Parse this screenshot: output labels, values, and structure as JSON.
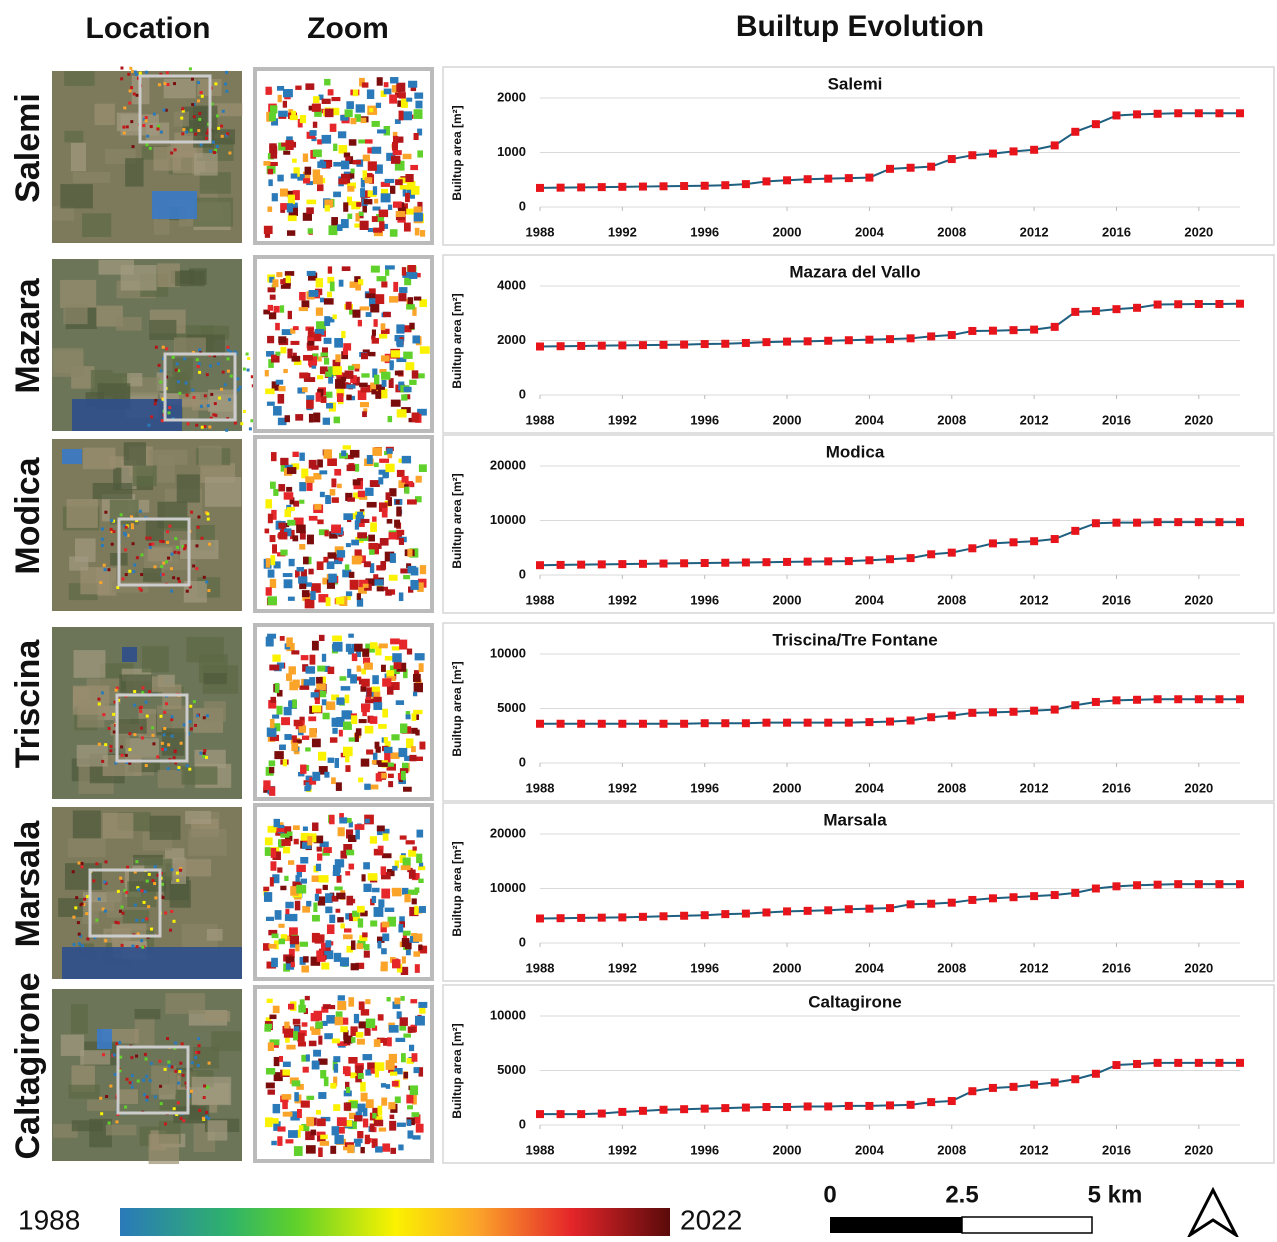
{
  "headers": [
    "Location",
    "Zoom",
    "Builtup Evolution"
  ],
  "row_labels": [
    "Salemi",
    "Mazara",
    "Modica",
    "Triscina",
    "Marsala",
    "Caltagirone"
  ],
  "colorbar": {
    "min_label": "1988",
    "max_label": "2022"
  },
  "scale_bar": {
    "labels": [
      "0",
      "2.5",
      "5 km"
    ]
  },
  "chart_data": [
    {
      "type": "line",
      "title": "Salemi",
      "y_label": "Builtup area [m²]",
      "x": [
        1988,
        1989,
        1990,
        1991,
        1992,
        1993,
        1994,
        1995,
        1996,
        1997,
        1998,
        1999,
        2000,
        2001,
        2002,
        2003,
        2004,
        2005,
        2006,
        2007,
        2008,
        2009,
        2010,
        2011,
        2012,
        2013,
        2014,
        2015,
        2016,
        2017,
        2018,
        2019,
        2020,
        2021,
        2022
      ],
      "series": [
        {
          "color": "#1f5f7f",
          "marker_color": "#e8141c",
          "values": [
            350,
            355,
            360,
            365,
            370,
            375,
            380,
            385,
            390,
            400,
            420,
            470,
            490,
            510,
            520,
            530,
            540,
            700,
            720,
            740,
            880,
            950,
            980,
            1020,
            1050,
            1130,
            1380,
            1520,
            1680,
            1700,
            1710,
            1720,
            1720,
            1720,
            1720
          ]
        }
      ],
      "xlim": [
        1988,
        2022
      ],
      "xticks": [
        1988,
        1992,
        1996,
        2000,
        2004,
        2008,
        2012,
        2016,
        2020
      ],
      "ylim": [
        0,
        2000
      ],
      "yticks": [
        0,
        1000,
        2000
      ],
      "grid": true
    },
    {
      "type": "line",
      "title": "Mazara del Vallo",
      "y_label": "Builtup area [m²]",
      "x": [
        1988,
        1989,
        1990,
        1991,
        1992,
        1993,
        1994,
        1995,
        1996,
        1997,
        1998,
        1999,
        2000,
        2001,
        2002,
        2003,
        2004,
        2005,
        2006,
        2007,
        2008,
        2009,
        2010,
        2011,
        2012,
        2013,
        2014,
        2015,
        2016,
        2017,
        2018,
        2019,
        2020,
        2021,
        2022
      ],
      "series": [
        {
          "color": "#1f5f7f",
          "marker_color": "#e8141c",
          "values": [
            1780,
            1790,
            1800,
            1810,
            1820,
            1830,
            1840,
            1850,
            1870,
            1880,
            1910,
            1940,
            1960,
            1970,
            1990,
            2010,
            2030,
            2050,
            2080,
            2150,
            2200,
            2350,
            2360,
            2380,
            2400,
            2500,
            3050,
            3080,
            3150,
            3200,
            3320,
            3330,
            3340,
            3340,
            3350
          ]
        }
      ],
      "xlim": [
        1988,
        2022
      ],
      "xticks": [
        1988,
        1992,
        1996,
        2000,
        2004,
        2008,
        2012,
        2016,
        2020
      ],
      "ylim": [
        0,
        4000
      ],
      "yticks": [
        0,
        2000,
        4000
      ],
      "grid": true
    },
    {
      "type": "line",
      "title": "Modica",
      "y_label": "Builtup area [m²]",
      "x": [
        1988,
        1989,
        1990,
        1991,
        1992,
        1993,
        1994,
        1995,
        1996,
        1997,
        1998,
        1999,
        2000,
        2001,
        2002,
        2003,
        2004,
        2005,
        2006,
        2007,
        2008,
        2009,
        2010,
        2011,
        2012,
        2013,
        2014,
        2015,
        2016,
        2017,
        2018,
        2019,
        2020,
        2021,
        2022
      ],
      "series": [
        {
          "color": "#1f5f7f",
          "marker_color": "#e8141c",
          "values": [
            1800,
            1850,
            1900,
            1950,
            2000,
            2050,
            2100,
            2150,
            2200,
            2250,
            2300,
            2350,
            2400,
            2450,
            2500,
            2550,
            2700,
            2900,
            3100,
            3800,
            4100,
            4900,
            5800,
            6000,
            6200,
            6600,
            8100,
            9500,
            9600,
            9600,
            9700,
            9700,
            9700,
            9700,
            9700
          ]
        }
      ],
      "xlim": [
        1988,
        2022
      ],
      "xticks": [
        1988,
        1992,
        1996,
        2000,
        2004,
        2008,
        2012,
        2016,
        2020
      ],
      "ylim": [
        0,
        20000
      ],
      "yticks": [
        0,
        10000,
        20000
      ],
      "grid": true
    },
    {
      "type": "line",
      "title": "Triscina/Tre Fontane",
      "y_label": "Builtup area [m²]",
      "x": [
        1988,
        1989,
        1990,
        1991,
        1992,
        1993,
        1994,
        1995,
        1996,
        1997,
        1998,
        1999,
        2000,
        2001,
        2002,
        2003,
        2004,
        2005,
        2006,
        2007,
        2008,
        2009,
        2010,
        2011,
        2012,
        2013,
        2014,
        2015,
        2016,
        2017,
        2018,
        2019,
        2020,
        2021,
        2022
      ],
      "series": [
        {
          "color": "#1f5f7f",
          "marker_color": "#e8141c",
          "values": [
            3600,
            3600,
            3600,
            3600,
            3600,
            3600,
            3600,
            3600,
            3650,
            3650,
            3650,
            3700,
            3700,
            3700,
            3700,
            3700,
            3750,
            3800,
            3900,
            4200,
            4350,
            4600,
            4650,
            4700,
            4800,
            4900,
            5300,
            5600,
            5750,
            5800,
            5850,
            5850,
            5850,
            5850,
            5850
          ]
        }
      ],
      "xlim": [
        1988,
        2022
      ],
      "xticks": [
        1988,
        1992,
        1996,
        2000,
        2004,
        2008,
        2012,
        2016,
        2020
      ],
      "ylim": [
        0,
        10000
      ],
      "yticks": [
        0,
        5000,
        10000
      ],
      "grid": true
    },
    {
      "type": "line",
      "title": "Marsala",
      "y_label": "Builtup area [m²]",
      "x": [
        1988,
        1989,
        1990,
        1991,
        1992,
        1993,
        1994,
        1995,
        1996,
        1997,
        1998,
        1999,
        2000,
        2001,
        2002,
        2003,
        2004,
        2005,
        2006,
        2007,
        2008,
        2009,
        2010,
        2011,
        2012,
        2013,
        2014,
        2015,
        2016,
        2017,
        2018,
        2019,
        2020,
        2021,
        2022
      ],
      "series": [
        {
          "color": "#1f5f7f",
          "marker_color": "#e8141c",
          "values": [
            4500,
            4550,
            4600,
            4650,
            4700,
            4800,
            4900,
            5000,
            5100,
            5300,
            5400,
            5600,
            5800,
            5900,
            6000,
            6200,
            6300,
            6400,
            7100,
            7200,
            7400,
            7900,
            8200,
            8400,
            8600,
            8800,
            9200,
            10000,
            10400,
            10600,
            10700,
            10800,
            10800,
            10800,
            10800
          ]
        }
      ],
      "xlim": [
        1988,
        2022
      ],
      "xticks": [
        1988,
        1992,
        1996,
        2000,
        2004,
        2008,
        2012,
        2016,
        2020
      ],
      "ylim": [
        0,
        20000
      ],
      "yticks": [
        0,
        10000,
        20000
      ],
      "grid": true
    },
    {
      "type": "line",
      "title": "Caltagirone",
      "y_label": "Builtup area [m²]",
      "x": [
        1988,
        1989,
        1990,
        1991,
        1992,
        1993,
        1994,
        1995,
        1996,
        1997,
        1998,
        1999,
        2000,
        2001,
        2002,
        2003,
        2004,
        2005,
        2006,
        2007,
        2008,
        2009,
        2010,
        2011,
        2012,
        2013,
        2014,
        2015,
        2016,
        2017,
        2018,
        2019,
        2020,
        2021,
        2022
      ],
      "series": [
        {
          "color": "#1f5f7f",
          "marker_color": "#e8141c",
          "values": [
            1000,
            1000,
            1000,
            1050,
            1200,
            1300,
            1400,
            1450,
            1500,
            1550,
            1600,
            1650,
            1650,
            1700,
            1700,
            1750,
            1750,
            1800,
            1850,
            2100,
            2200,
            3100,
            3400,
            3500,
            3700,
            3900,
            4200,
            4700,
            5500,
            5600,
            5700,
            5700,
            5700,
            5700,
            5700
          ]
        }
      ],
      "xlim": [
        1988,
        2022
      ],
      "xticks": [
        1988,
        1992,
        1996,
        2000,
        2004,
        2008,
        2012,
        2016,
        2020
      ],
      "ylim": [
        0,
        10000
      ],
      "yticks": [
        0,
        5000,
        10000
      ],
      "grid": true
    }
  ]
}
